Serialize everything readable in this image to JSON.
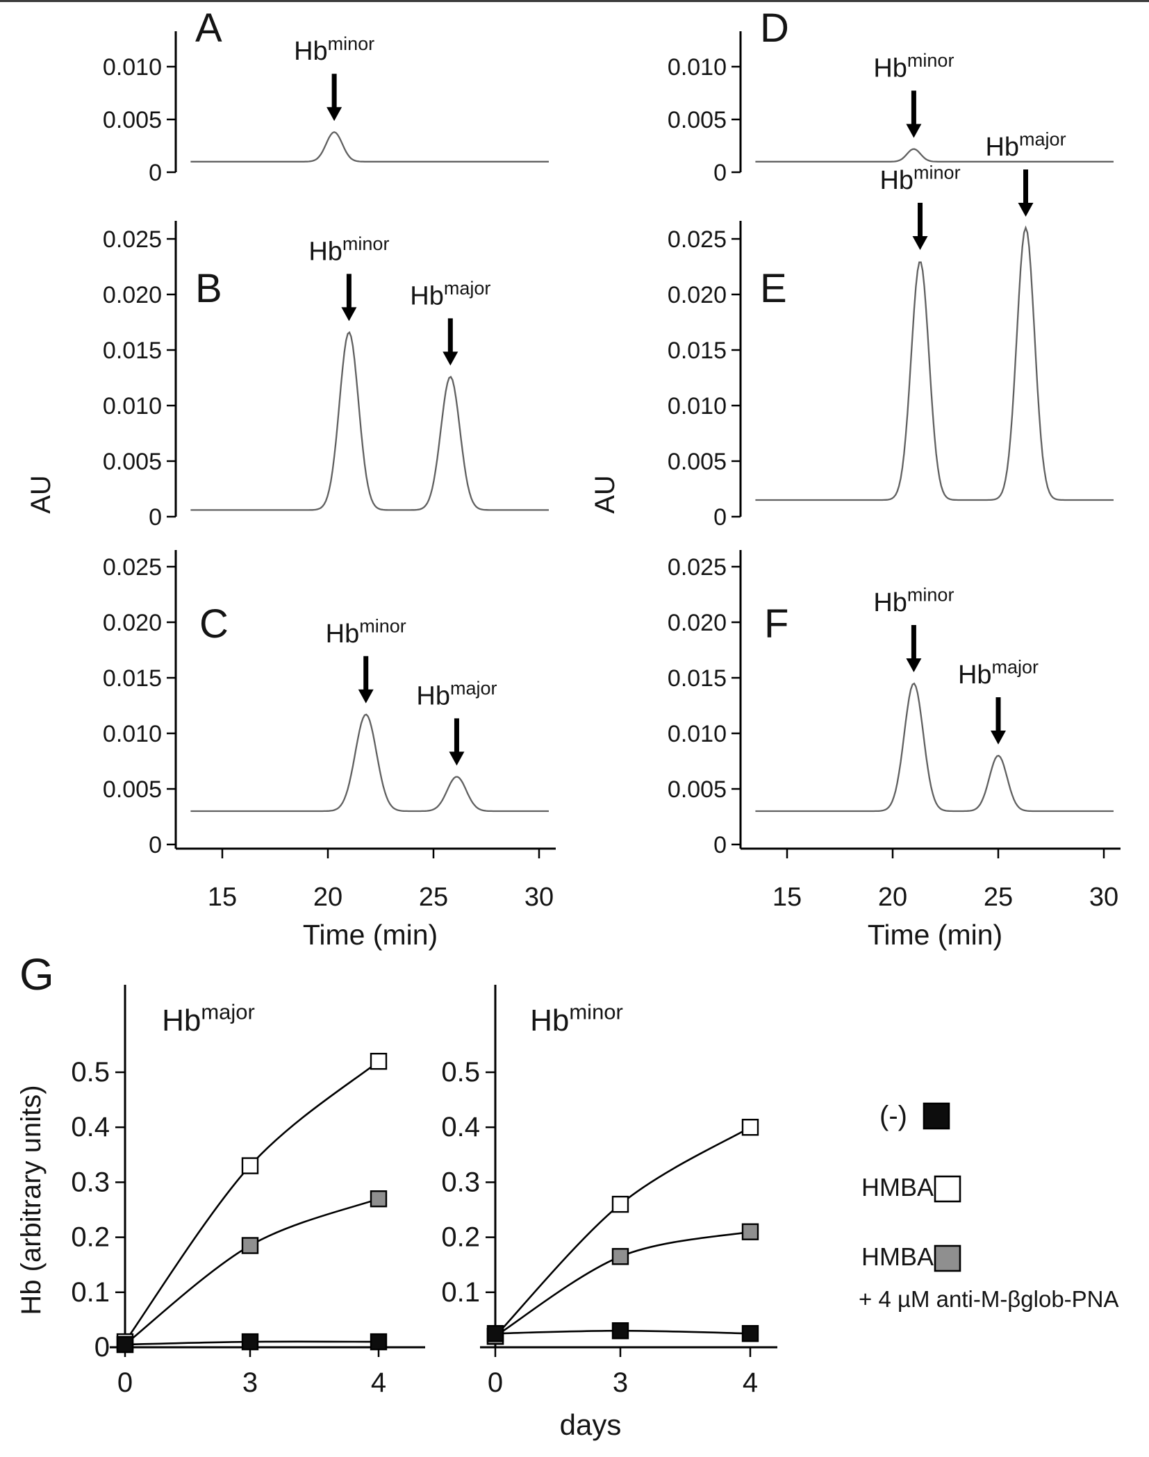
{
  "colors": {
    "background": "#ffffff",
    "trace": "#606060",
    "axis": "#000000",
    "text": "#141414",
    "marker_open": "#ffffff",
    "marker_gray": "#8f8f8f",
    "marker_filled": "#0d0d0d",
    "top_rule": "#3c3c3c"
  },
  "chart_data": [
    {
      "id": "A",
      "type": "line",
      "panel_label": "A",
      "x_range": [
        13.5,
        30.5
      ],
      "ylim": [
        0,
        0.0135
      ],
      "y_tick_labels": [
        "0.010",
        "0.005",
        "0"
      ],
      "y_tick_values": [
        0.01,
        0.005,
        0
      ],
      "baseline_au": 0.001,
      "peaks": [
        {
          "label": "Hb",
          "sup": "minor",
          "time_min": 20.3,
          "height_au": 0.0028,
          "sigma_min": 0.38
        }
      ]
    },
    {
      "id": "B",
      "type": "line",
      "panel_label": "B",
      "ylabel": "AU",
      "x_range": [
        13.5,
        30.5
      ],
      "ylim": [
        0,
        0.0265
      ],
      "y_tick_labels": [
        "0.025",
        "0.020",
        "0.015",
        "0.010",
        "0.005",
        "0"
      ],
      "y_tick_values": [
        0.025,
        0.02,
        0.015,
        0.01,
        0.005,
        0
      ],
      "baseline_au": 0.0006,
      "peaks": [
        {
          "label": "Hb",
          "sup": "minor",
          "time_min": 21.0,
          "height_au": 0.016,
          "sigma_min": 0.45
        },
        {
          "label": "Hb",
          "sup": "major",
          "time_min": 25.8,
          "height_au": 0.012,
          "sigma_min": 0.45
        }
      ]
    },
    {
      "id": "C",
      "type": "line",
      "panel_label": "C",
      "xlabel": "Time (min)",
      "x_range": [
        13.5,
        30.5
      ],
      "ylim": [
        0,
        0.0265
      ],
      "x_tick_labels": [
        "15",
        "20",
        "25",
        "30"
      ],
      "x_tick_values": [
        15,
        20,
        25,
        30
      ],
      "y_tick_labels": [
        "0.025",
        "0.020",
        "0.015",
        "0.010",
        "0.005",
        "0"
      ],
      "y_tick_values": [
        0.025,
        0.02,
        0.015,
        0.01,
        0.005,
        0
      ],
      "baseline_au": 0.003,
      "peaks": [
        {
          "label": "Hb",
          "sup": "minor",
          "time_min": 21.8,
          "height_au": 0.0087,
          "sigma_min": 0.5
        },
        {
          "label": "Hb",
          "sup": "major",
          "time_min": 26.1,
          "height_au": 0.0031,
          "sigma_min": 0.45
        }
      ]
    },
    {
      "id": "D",
      "type": "line",
      "panel_label": "D",
      "x_range": [
        13.5,
        30.5
      ],
      "ylim": [
        0,
        0.0135
      ],
      "y_tick_labels": [
        "0.010",
        "0.005",
        "0"
      ],
      "y_tick_values": [
        0.01,
        0.005,
        0
      ],
      "baseline_au": 0.001,
      "peaks": [
        {
          "label": "Hb",
          "sup": "minor",
          "time_min": 21.0,
          "height_au": 0.0012,
          "sigma_min": 0.32
        }
      ]
    },
    {
      "id": "E",
      "type": "line",
      "panel_label": "E",
      "ylabel": "AU",
      "x_range": [
        13.5,
        30.5
      ],
      "ylim": [
        0,
        0.0265
      ],
      "y_tick_labels": [
        "0.025",
        "0.020",
        "0.015",
        "0.010",
        "0.005",
        "0"
      ],
      "y_tick_values": [
        0.025,
        0.02,
        0.015,
        0.01,
        0.005,
        0
      ],
      "baseline_au": 0.0015,
      "peaks": [
        {
          "label": "Hb",
          "sup": "minor",
          "time_min": 21.3,
          "height_au": 0.0215,
          "sigma_min": 0.42
        },
        {
          "label": "Hb",
          "sup": "major",
          "time_min": 26.3,
          "height_au": 0.0245,
          "sigma_min": 0.42
        }
      ]
    },
    {
      "id": "F",
      "type": "line",
      "panel_label": "F",
      "xlabel": "Time (min)",
      "x_range": [
        13.5,
        30.5
      ],
      "ylim": [
        0,
        0.0265
      ],
      "x_tick_labels": [
        "15",
        "20",
        "25",
        "30"
      ],
      "x_tick_values": [
        15,
        20,
        25,
        30
      ],
      "y_tick_labels": [
        "0.025",
        "0.020",
        "0.015",
        "0.010",
        "0.005",
        "0"
      ],
      "y_tick_values": [
        0.025,
        0.02,
        0.015,
        0.01,
        0.005,
        0
      ],
      "baseline_au": 0.003,
      "peaks": [
        {
          "label": "Hb",
          "sup": "minor",
          "time_min": 21.0,
          "height_au": 0.0115,
          "sigma_min": 0.45
        },
        {
          "label": "Hb",
          "sup": "major",
          "time_min": 25.0,
          "height_au": 0.005,
          "sigma_min": 0.42
        }
      ]
    },
    {
      "id": "G_major",
      "type": "scatter",
      "title": "Hb",
      "title_sup": "major",
      "x_values": [
        0,
        3,
        4
      ],
      "x_tick_labels": [
        "0",
        "3",
        "4"
      ],
      "ylim": [
        0,
        0.55
      ],
      "y_tick_labels": [
        "0.5",
        "0.4",
        "0.3",
        "0.2",
        "0.1",
        "0"
      ],
      "series": [
        {
          "name": "HMBA",
          "marker": "open-square",
          "values": [
            0.01,
            0.33,
            0.52
          ]
        },
        {
          "name": "HMBA + 4 µM anti-M-βglob-PNA",
          "marker": "gray-square",
          "values": [
            0.005,
            0.185,
            0.27
          ]
        },
        {
          "name": "(-)",
          "marker": "filled-square",
          "values": [
            0.005,
            0.01,
            0.01
          ]
        }
      ]
    },
    {
      "id": "G_minor",
      "type": "scatter",
      "title": "Hb",
      "title_sup": "minor",
      "x_values": [
        0,
        3,
        4
      ],
      "x_tick_labels": [
        "0",
        "3",
        "4"
      ],
      "ylim": [
        0,
        0.55
      ],
      "y_tick_labels": [
        "0.5",
        "0.4",
        "0.3",
        "0.2",
        "0.1"
      ],
      "series": [
        {
          "name": "HMBA",
          "marker": "open-square",
          "values": [
            0.02,
            0.26,
            0.4
          ]
        },
        {
          "name": "HMBA + 4 µM anti-M-βglob-PNA",
          "marker": "gray-square",
          "values": [
            0.02,
            0.165,
            0.21
          ]
        },
        {
          "name": "(-)",
          "marker": "filled-square",
          "values": [
            0.025,
            0.03,
            0.025
          ]
        }
      ]
    }
  ],
  "panel_g": {
    "label": "G",
    "ylabel": "Hb (arbitrary units)",
    "xlabel": "days",
    "legend": [
      {
        "label": "(-)",
        "marker": "filled-square"
      },
      {
        "label": "HMBA",
        "marker": "open-square"
      },
      {
        "label": "HMBA",
        "sublabel": "+ 4 µM anti-M-βglob-PNA",
        "marker": "gray-square"
      }
    ]
  }
}
